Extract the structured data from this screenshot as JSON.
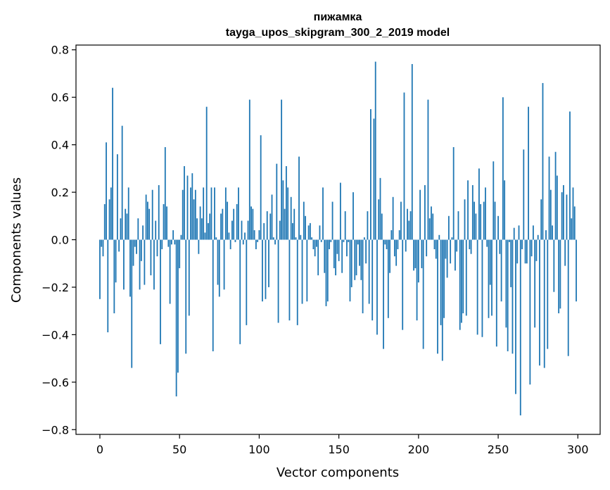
{
  "chart_data": {
    "type": "bar",
    "title_line1": "пижамка",
    "title_line2": "tayga_upos_skipgram_300_2_2019 model",
    "xlabel": "Vector components",
    "ylabel": "Components values",
    "xlim": [
      -15,
      314
    ],
    "ylim": [
      -0.82,
      0.82
    ],
    "x_ticks": [
      0,
      50,
      100,
      150,
      200,
      250,
      300
    ],
    "y_ticks": [
      -0.8,
      -0.6,
      -0.4,
      -0.2,
      0.0,
      0.2,
      0.4,
      0.6,
      0.8
    ],
    "y_tick_labels": [
      "−0.8",
      "−0.6",
      "−0.4",
      "−0.2",
      "0.0",
      "0.2",
      "0.4",
      "0.6",
      "0.8"
    ],
    "grid": false,
    "bar_color": "#1f77b4",
    "values": [
      -0.25,
      -0.03,
      -0.07,
      0.15,
      0.41,
      -0.39,
      0.17,
      0.22,
      0.64,
      -0.31,
      -0.18,
      0.36,
      -0.05,
      0.09,
      0.48,
      -0.21,
      0.13,
      0.11,
      0.22,
      -0.24,
      -0.54,
      -0.11,
      -0.03,
      -0.06,
      0.09,
      -0.21,
      -0.09,
      0.06,
      -0.19,
      0.19,
      0.16,
      0.13,
      -0.15,
      0.21,
      -0.21,
      0.08,
      -0.07,
      0.23,
      -0.44,
      -0.04,
      0.15,
      0.39,
      0.14,
      -0.03,
      -0.27,
      -0.02,
      0.04,
      -0.02,
      -0.66,
      -0.56,
      -0.12,
      0.02,
      0.21,
      0.31,
      -0.48,
      0.27,
      -0.32,
      0.22,
      0.28,
      0.17,
      0.21,
      0.09,
      -0.06,
      0.14,
      0.09,
      0.22,
      0.03,
      0.56,
      0.07,
      0.11,
      0.22,
      -0.47,
      0.22,
      0.01,
      -0.19,
      -0.24,
      0.11,
      0.13,
      -0.21,
      0.22,
      0.16,
      0.03,
      -0.04,
      0.08,
      0.13,
      -0.01,
      0.15,
      0.22,
      -0.44,
      0.08,
      -0.02,
      0.03,
      -0.36,
      0.08,
      0.59,
      0.14,
      0.13,
      0.04,
      -0.04,
      -0.01,
      0.04,
      0.44,
      -0.26,
      0.07,
      -0.25,
      0.12,
      -0.2,
      0.11,
      0.19,
      0.01,
      -0.02,
      0.32,
      -0.35,
      0.08,
      0.59,
      0.25,
      0.13,
      0.31,
      0.22,
      -0.34,
      0.18,
      0.07,
      0.13,
      0.01,
      -0.36,
      0.35,
      0.02,
      -0.27,
      0.16,
      0.1,
      -0.26,
      0.06,
      0.07,
      0.01,
      -0.04,
      -0.07,
      -0.03,
      -0.15,
      0.06,
      -0.01,
      0.22,
      -0.14,
      -0.28,
      -0.26,
      -0.04,
      -0.01,
      0.16,
      -0.12,
      -0.15,
      -0.06,
      -0.09,
      0.24,
      -0.14,
      -0.01,
      0.12,
      -0.07,
      -0.01,
      -0.26,
      -0.2,
      0.2,
      -0.17,
      -0.15,
      -0.02,
      -0.11,
      -0.17,
      -0.31,
      0.01,
      -0.1,
      0.12,
      -0.27,
      0.55,
      -0.34,
      0.51,
      0.75,
      -0.4,
      0.17,
      0.26,
      0.11,
      -0.46,
      -0.02,
      -0.04,
      -0.33,
      -0.14,
      0.04,
      0.18,
      -0.07,
      -0.11,
      -0.04,
      0.04,
      0.16,
      -0.38,
      0.62,
      -0.05,
      0.13,
      0.08,
      0.12,
      0.74,
      -0.13,
      -0.12,
      -0.34,
      -0.18,
      0.21,
      -0.12,
      -0.46,
      0.23,
      -0.07,
      0.59,
      0.09,
      0.14,
      0.11,
      -0.04,
      -0.08,
      -0.48,
      0.02,
      -0.36,
      -0.51,
      -0.33,
      -0.08,
      -0.16,
      0.1,
      -0.1,
      0.01,
      0.39,
      -0.13,
      -0.05,
      0.12,
      -0.38,
      -0.35,
      -0.31,
      0.17,
      -0.32,
      0.25,
      -0.04,
      -0.06,
      0.23,
      0.16,
      0.11,
      -0.4,
      0.3,
      0.15,
      -0.41,
      0.16,
      0.22,
      -0.03,
      -0.33,
      -0.19,
      -0.32,
      0.33,
      0.16,
      -0.45,
      0.1,
      -0.06,
      -0.26,
      0.6,
      0.25,
      -0.37,
      -0.47,
      -0.01,
      -0.2,
      -0.48,
      0.05,
      -0.65,
      -0.1,
      0.06,
      -0.74,
      -0.04,
      0.38,
      -0.1,
      -0.1,
      0.56,
      -0.61,
      -0.07,
      0.06,
      -0.37,
      -0.09,
      0.02,
      -0.53,
      0.17,
      0.66,
      -0.54,
      0.04,
      -0.46,
      0.35,
      0.21,
      0.06,
      -0.22,
      0.37,
      0.27,
      -0.31,
      -0.29,
      0.2,
      0.23,
      -0.11,
      0.19,
      -0.49,
      0.54,
      0.09,
      0.22,
      0.14,
      -0.26
    ]
  }
}
